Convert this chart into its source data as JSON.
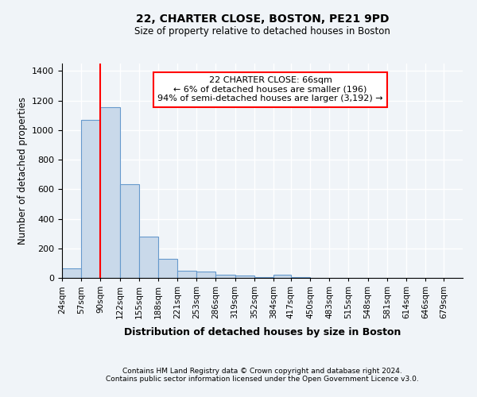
{
  "title1": "22, CHARTER CLOSE, BOSTON, PE21 9PD",
  "title2": "Size of property relative to detached houses in Boston",
  "xlabel": "Distribution of detached houses by size in Boston",
  "ylabel": "Number of detached properties",
  "footer1": "Contains HM Land Registry data © Crown copyright and database right 2024.",
  "footer2": "Contains public sector information licensed under the Open Government Licence v3.0.",
  "annotation_line1": "22 CHARTER CLOSE: 66sqm",
  "annotation_line2": "← 6% of detached houses are smaller (196)",
  "annotation_line3": "94% of semi-detached houses are larger (3,192) →",
  "bar_color": "#c9d9ea",
  "bar_edge_color": "#6699cc",
  "vline_x": 73.5,
  "vline_color": "red",
  "categories": [
    "24sqm",
    "57sqm",
    "90sqm",
    "122sqm",
    "155sqm",
    "188sqm",
    "221sqm",
    "253sqm",
    "286sqm",
    "319sqm",
    "352sqm",
    "384sqm",
    "417sqm",
    "450sqm",
    "483sqm",
    "515sqm",
    "548sqm",
    "581sqm",
    "614sqm",
    "646sqm",
    "679sqm"
  ],
  "bin_edges": [
    7.5,
    40.5,
    73.5,
    106.5,
    139.5,
    172.5,
    205.5,
    238.5,
    271.5,
    304.5,
    337.5,
    370.5,
    400.5,
    433.5,
    466.5,
    499.5,
    532.5,
    565.5,
    598.5,
    631.5,
    662.5,
    695.5
  ],
  "values": [
    65,
    1070,
    1155,
    635,
    280,
    130,
    50,
    45,
    20,
    15,
    5,
    20,
    3,
    2,
    1,
    1,
    1,
    1,
    0,
    1,
    1
  ],
  "ylim": [
    0,
    1450
  ],
  "yticks": [
    0,
    200,
    400,
    600,
    800,
    1000,
    1200,
    1400
  ],
  "bg_color": "#f0f4f8",
  "plot_bg_color": "#f0f4f8",
  "grid_color": "#ffffff",
  "annotation_box_color": "#ffffff",
  "annotation_box_edge": "red"
}
